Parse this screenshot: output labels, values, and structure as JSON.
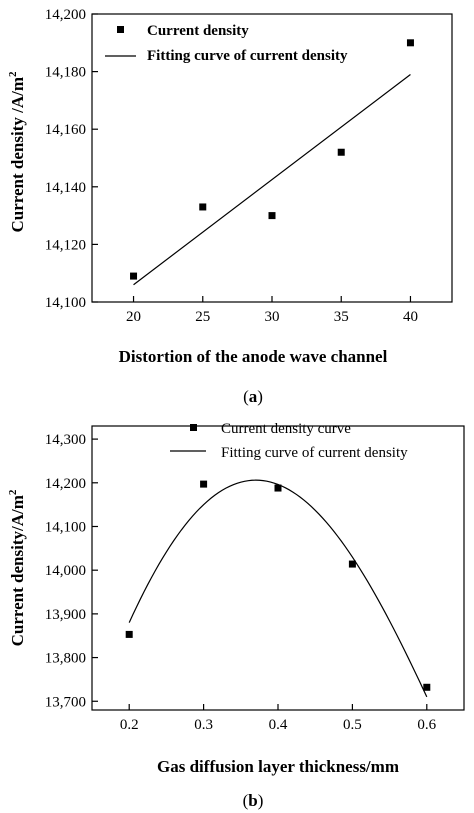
{
  "chart_data": [
    {
      "type": "scatter",
      "panel_label_open": "(",
      "panel_label_letter": "a",
      "panel_label_close": ")",
      "xlabel": "Distortion of the anode wave channel",
      "ylabel": "Current density /A/m",
      "ylabel_sup": "2",
      "xlim": [
        17,
        43
      ],
      "ylim": [
        14100,
        14200
      ],
      "xticks": [
        20,
        25,
        30,
        35,
        40
      ],
      "xtick_labels": [
        "20",
        "25",
        "30",
        "35",
        "40"
      ],
      "yticks": [
        14100,
        14120,
        14140,
        14160,
        14180,
        14200
      ],
      "ytick_labels": [
        "14,100",
        "14,120",
        "14,140",
        "14,160",
        "14,180",
        "14,200"
      ],
      "series": [
        {
          "name": "Current density",
          "kind": "points",
          "x": [
            20,
            25,
            30,
            35,
            40
          ],
          "y": [
            14109,
            14133,
            14130,
            14152,
            14190
          ]
        },
        {
          "name": "Fitting curve of current density",
          "kind": "line",
          "x": [
            20,
            40
          ],
          "y": [
            14106,
            14179
          ]
        }
      ],
      "legend_position": "top-left",
      "grid": false
    },
    {
      "type": "scatter",
      "panel_label_open": "(",
      "panel_label_letter": "b",
      "panel_label_close": ")",
      "xlabel": "Gas diffusion layer thickness/mm",
      "ylabel": "Current density/A/m",
      "ylabel_sup": "2",
      "xlim": [
        0.15,
        0.65
      ],
      "ylim": [
        13680,
        14330
      ],
      "xticks": [
        0.2,
        0.3,
        0.4,
        0.5,
        0.6
      ],
      "xtick_labels": [
        "0.2",
        "0.3",
        "0.4",
        "0.5",
        "0.6"
      ],
      "yticks": [
        13700,
        13800,
        13900,
        14000,
        14100,
        14200,
        14300
      ],
      "ytick_labels": [
        "13,700",
        "13,800",
        "13,900",
        "14,000",
        "14,100",
        "14,200",
        "14,300"
      ],
      "series": [
        {
          "name": "Current density curve",
          "kind": "points",
          "x": [
            0.2,
            0.3,
            0.4,
            0.5,
            0.6
          ],
          "y": [
            13853,
            14197,
            14188,
            14014,
            13732
          ]
        },
        {
          "name": "Fitting curve of current density",
          "kind": "curve",
          "x": [
            0.2,
            0.3,
            0.38,
            0.5,
            0.6
          ],
          "y": [
            13880,
            14150,
            14205,
            14030,
            13710
          ]
        }
      ],
      "legend_position": "top-right",
      "grid": false
    }
  ]
}
